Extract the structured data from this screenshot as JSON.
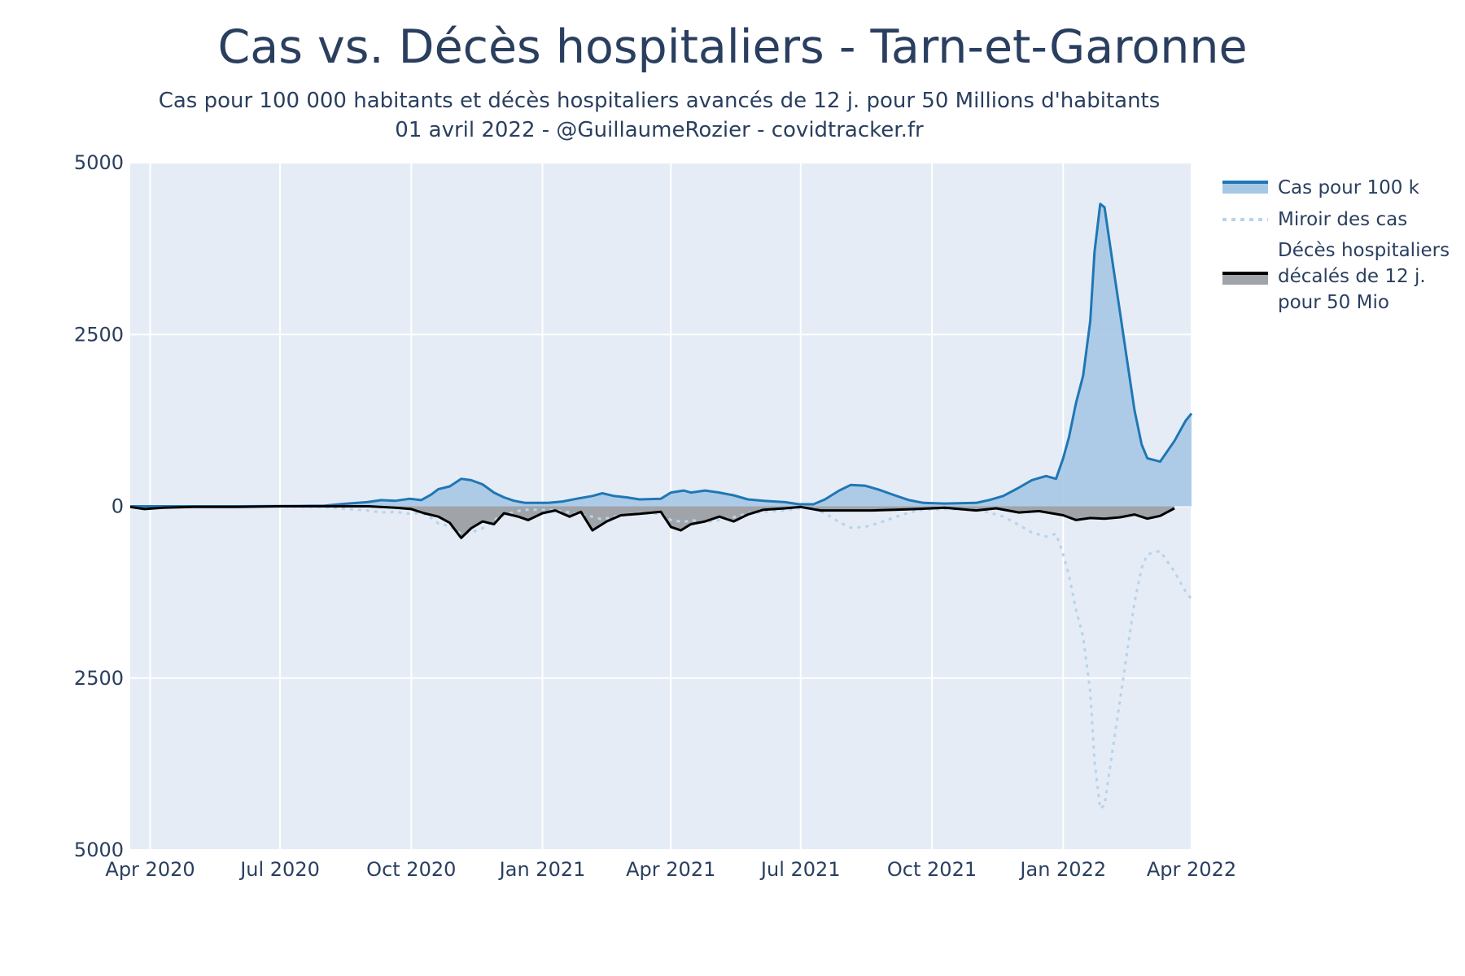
{
  "title": "Cas vs. Décès hospitaliers - Tarn-et-Garonne",
  "subtitle_line1": "Cas pour 100 000 habitants et décès hospitaliers avancés de 12 j. pour 50 Millions d'habitants",
  "subtitle_line2": "01 avril 2022 - @GuillaumeRozier - covidtracker.fr",
  "legend": {
    "cases": "Cas pour 100 k",
    "mirror": "Miroir des cas",
    "deaths_line1": "Décès hospitaliers",
    "deaths_line2": "décalés de 12 j.",
    "deaths_line3": "pour 50 Mio"
  },
  "y_ticks": [
    "5000",
    "2500",
    "0",
    "2500",
    "5000"
  ],
  "x_ticks": [
    "Apr 2020",
    "Jul 2020",
    "Oct 2020",
    "Jan 2021",
    "Apr 2021",
    "Jul 2021",
    "Oct 2021",
    "Jan 2022",
    "Apr 2022"
  ],
  "colors": {
    "plot_bg": "#e5ecf6",
    "cases_line": "#1f77b4",
    "cases_fill": "#a6c8e5",
    "mirror_line": "#b8d3ea",
    "deaths_line": "#000000",
    "deaths_fill": "#a0a4a9"
  },
  "chart_data": {
    "type": "area",
    "title": "Cas vs. Décès hospitaliers - Tarn-et-Garonne",
    "xlabel": "",
    "ylabel": "",
    "x_range": [
      "2020-03-18",
      "2022-04-01"
    ],
    "ylim": [
      -5000,
      5000
    ],
    "y_axis_labels_absolute": true,
    "grid": true,
    "legend_position": "top-right",
    "series": [
      {
        "name": "Cas pour 100 k",
        "style": "solid line, filled to zero",
        "points": [
          [
            "2020-03-18",
            0
          ],
          [
            "2020-06-01",
            0
          ],
          [
            "2020-07-15",
            5
          ],
          [
            "2020-08-01",
            10
          ],
          [
            "2020-08-15",
            35
          ],
          [
            "2020-08-31",
            60
          ],
          [
            "2020-09-10",
            90
          ],
          [
            "2020-09-20",
            80
          ],
          [
            "2020-09-30",
            110
          ],
          [
            "2020-10-08",
            90
          ],
          [
            "2020-10-15",
            170
          ],
          [
            "2020-10-20",
            250
          ],
          [
            "2020-10-28",
            290
          ],
          [
            "2020-11-05",
            400
          ],
          [
            "2020-11-12",
            380
          ],
          [
            "2020-11-20",
            320
          ],
          [
            "2020-11-28",
            200
          ],
          [
            "2020-12-05",
            130
          ],
          [
            "2020-12-12",
            80
          ],
          [
            "2020-12-20",
            50
          ],
          [
            "2021-01-05",
            50
          ],
          [
            "2021-01-15",
            70
          ],
          [
            "2021-01-25",
            110
          ],
          [
            "2021-02-05",
            150
          ],
          [
            "2021-02-12",
            190
          ],
          [
            "2021-02-20",
            150
          ],
          [
            "2021-03-01",
            130
          ],
          [
            "2021-03-10",
            100
          ],
          [
            "2021-03-25",
            110
          ],
          [
            "2021-04-01",
            200
          ],
          [
            "2021-04-10",
            230
          ],
          [
            "2021-04-15",
            200
          ],
          [
            "2021-04-25",
            230
          ],
          [
            "2021-05-05",
            200
          ],
          [
            "2021-05-15",
            160
          ],
          [
            "2021-05-25",
            100
          ],
          [
            "2021-06-05",
            80
          ],
          [
            "2021-06-20",
            60
          ],
          [
            "2021-06-30",
            30
          ],
          [
            "2021-07-10",
            30
          ],
          [
            "2021-07-18",
            100
          ],
          [
            "2021-07-28",
            230
          ],
          [
            "2021-08-05",
            310
          ],
          [
            "2021-08-15",
            300
          ],
          [
            "2021-08-25",
            240
          ],
          [
            "2021-09-05",
            160
          ],
          [
            "2021-09-15",
            90
          ],
          [
            "2021-09-25",
            50
          ],
          [
            "2021-10-10",
            40
          ],
          [
            "2021-11-01",
            50
          ],
          [
            "2021-11-10",
            90
          ],
          [
            "2021-11-20",
            150
          ],
          [
            "2021-11-30",
            260
          ],
          [
            "2021-12-10",
            380
          ],
          [
            "2021-12-20",
            440
          ],
          [
            "2021-12-27",
            400
          ],
          [
            "2022-01-01",
            700
          ],
          [
            "2022-01-05",
            1000
          ],
          [
            "2022-01-10",
            1500
          ],
          [
            "2022-01-15",
            1900
          ],
          [
            "2022-01-20",
            2700
          ],
          [
            "2022-01-23",
            3700
          ],
          [
            "2022-01-27",
            4400
          ],
          [
            "2022-01-30",
            4350
          ],
          [
            "2022-02-05",
            3500
          ],
          [
            "2022-02-10",
            2800
          ],
          [
            "2022-02-15",
            2100
          ],
          [
            "2022-02-20",
            1400
          ],
          [
            "2022-02-25",
            900
          ],
          [
            "2022-03-01",
            700
          ],
          [
            "2022-03-10",
            650
          ],
          [
            "2022-03-20",
            950
          ],
          [
            "2022-03-28",
            1250
          ],
          [
            "2022-04-01",
            1350
          ]
        ]
      },
      {
        "name": "Miroir des cas",
        "style": "dotted line, negative mirror of cases",
        "mirror_of": "Cas pour 100 k"
      },
      {
        "name": "Décès hospitaliers décalés de 12 j. pour 50 Mio",
        "style": "solid black line, filled to zero, plotted downward",
        "points": [
          [
            "2020-03-18",
            -10
          ],
          [
            "2020-03-28",
            -40
          ],
          [
            "2020-04-10",
            -20
          ],
          [
            "2020-05-01",
            -10
          ],
          [
            "2020-06-01",
            -10
          ],
          [
            "2020-07-01",
            0
          ],
          [
            "2020-09-01",
            0
          ],
          [
            "2020-09-20",
            -20
          ],
          [
            "2020-10-01",
            -40
          ],
          [
            "2020-10-10",
            -100
          ],
          [
            "2020-10-20",
            -150
          ],
          [
            "2020-10-28",
            -240
          ],
          [
            "2020-11-05",
            -460
          ],
          [
            "2020-11-12",
            -320
          ],
          [
            "2020-11-20",
            -220
          ],
          [
            "2020-11-28",
            -260
          ],
          [
            "2020-12-05",
            -100
          ],
          [
            "2020-12-15",
            -150
          ],
          [
            "2020-12-22",
            -200
          ],
          [
            "2021-01-01",
            -100
          ],
          [
            "2021-01-10",
            -60
          ],
          [
            "2021-01-20",
            -150
          ],
          [
            "2021-01-28",
            -80
          ],
          [
            "2021-02-05",
            -350
          ],
          [
            "2021-02-15",
            -220
          ],
          [
            "2021-02-25",
            -130
          ],
          [
            "2021-03-10",
            -110
          ],
          [
            "2021-03-25",
            -80
          ],
          [
            "2021-04-01",
            -300
          ],
          [
            "2021-04-08",
            -350
          ],
          [
            "2021-04-15",
            -260
          ],
          [
            "2021-04-25",
            -220
          ],
          [
            "2021-05-05",
            -150
          ],
          [
            "2021-05-15",
            -220
          ],
          [
            "2021-05-25",
            -120
          ],
          [
            "2021-06-05",
            -50
          ],
          [
            "2021-06-20",
            -30
          ],
          [
            "2021-07-01",
            -10
          ],
          [
            "2021-07-15",
            -60
          ],
          [
            "2021-08-01",
            -60
          ],
          [
            "2021-08-20",
            -60
          ],
          [
            "2021-09-05",
            -50
          ],
          [
            "2021-09-20",
            -40
          ],
          [
            "2021-10-10",
            -20
          ],
          [
            "2021-11-01",
            -60
          ],
          [
            "2021-11-15",
            -30
          ],
          [
            "2021-12-01",
            -90
          ],
          [
            "2021-12-15",
            -70
          ],
          [
            "2022-01-01",
            -130
          ],
          [
            "2022-01-10",
            -200
          ],
          [
            "2022-01-20",
            -170
          ],
          [
            "2022-01-30",
            -180
          ],
          [
            "2022-02-10",
            -160
          ],
          [
            "2022-02-20",
            -120
          ],
          [
            "2022-03-01",
            -180
          ],
          [
            "2022-03-10",
            -140
          ],
          [
            "2022-03-20",
            -30
          ]
        ]
      }
    ]
  }
}
